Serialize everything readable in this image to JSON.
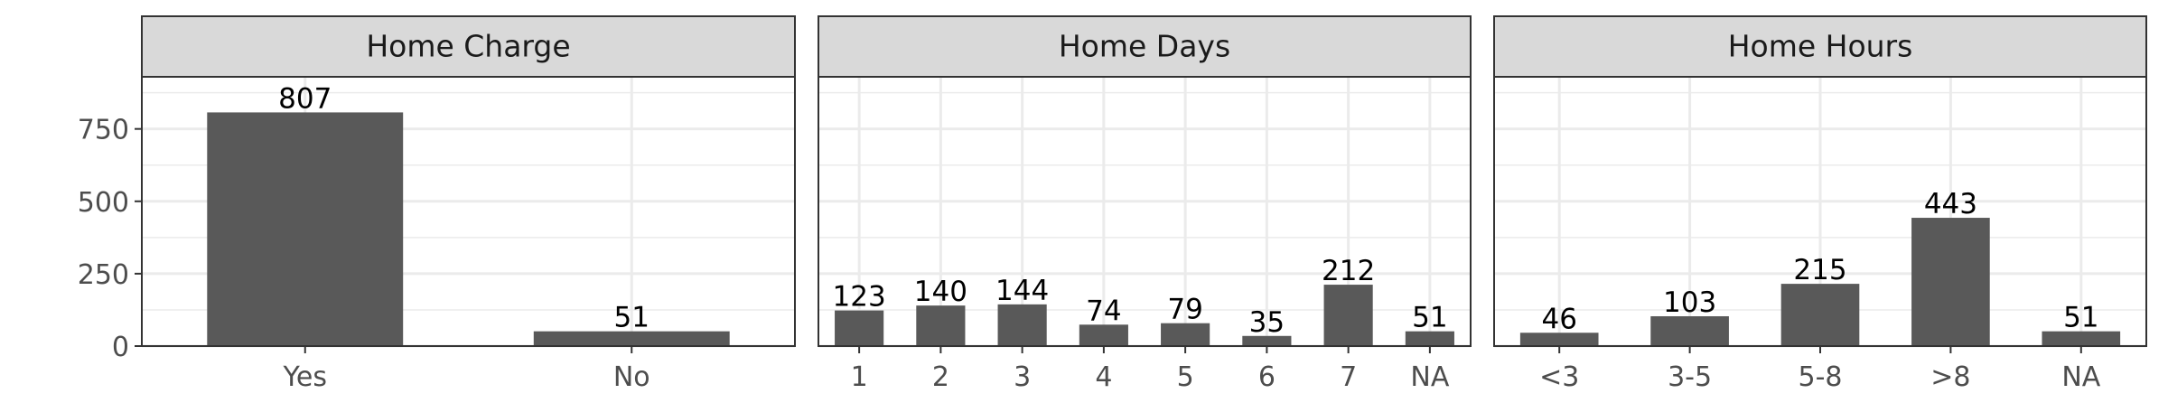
{
  "chart_data": [
    {
      "type": "bar",
      "title": "Home Charge",
      "categories": [
        "Yes",
        "No"
      ],
      "values": [
        807,
        51
      ],
      "ylim": [
        0,
        930
      ],
      "yticks": [
        0,
        250,
        500,
        750
      ],
      "grid": true
    },
    {
      "type": "bar",
      "title": "Home Days",
      "categories": [
        "1",
        "2",
        "3",
        "4",
        "5",
        "6",
        "7",
        "NA"
      ],
      "values": [
        123,
        140,
        144,
        74,
        79,
        35,
        212,
        51
      ],
      "ylim": [
        0,
        930
      ],
      "yticks": [
        0,
        250,
        500,
        750
      ],
      "grid": true
    },
    {
      "type": "bar",
      "title": "Home Hours",
      "categories": [
        "<3",
        "3-5",
        "5-8",
        ">8",
        "NA"
      ],
      "values": [
        46,
        103,
        215,
        443,
        51
      ],
      "ylim": [
        0,
        930
      ],
      "yticks": [
        0,
        250,
        500,
        750
      ],
      "grid": true
    }
  ],
  "colors": {
    "bar": "#595959",
    "strip_fill": "#d9d9d9",
    "panel_border": "#333333",
    "grid": "#ebebeb",
    "axis_text": "#4d4d4d"
  }
}
